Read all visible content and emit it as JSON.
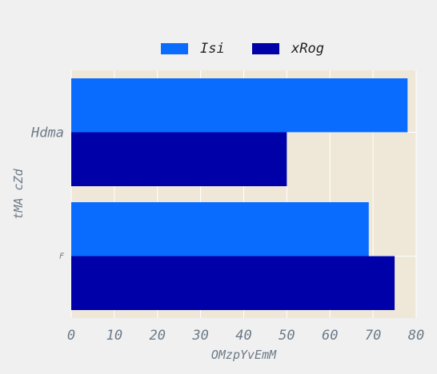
{
  "chart_data": {
    "type": "bar",
    "orientation": "horizontal",
    "categories": [
      "Hdma",
      "F"
    ],
    "category_label_sizes": [
      "large",
      "small"
    ],
    "series": [
      {
        "name": "Isi",
        "color": "#0a6cff",
        "values": [
          78,
          69
        ]
      },
      {
        "name": "xRog",
        "color": "#0000a8",
        "values": [
          50,
          75
        ]
      }
    ],
    "xlabel": "OMzpYvEmM",
    "ylabel": "tMA cZd",
    "xlim": [
      0,
      80
    ],
    "xticks": [
      0,
      10,
      20,
      30,
      40,
      50,
      60,
      70,
      80
    ],
    "grid": true,
    "legend_position": "top-center",
    "plot_background": "#efe8d8",
    "grid_color": "#ffffff"
  }
}
